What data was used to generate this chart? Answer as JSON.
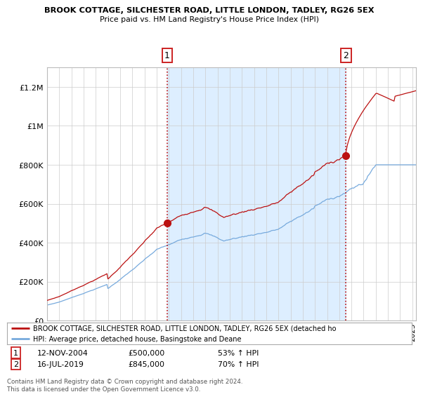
{
  "title1": "BROOK COTTAGE, SILCHESTER ROAD, LITTLE LONDON, TADLEY, RG26 5EX",
  "title2": "Price paid vs. HM Land Registry's House Price Index (HPI)",
  "legend_label1": "BROOK COTTAGE, SILCHESTER ROAD, LITTLE LONDON, TADLEY, RG26 5EX (detached ho",
  "legend_label2": "HPI: Average price, detached house, Basingstoke and Deane",
  "annotation1_label": "1",
  "annotation1_date": "12-NOV-2004",
  "annotation1_price": "£500,000",
  "annotation1_hpi": "53% ↑ HPI",
  "annotation2_label": "2",
  "annotation2_date": "16-JUL-2019",
  "annotation2_price": "£845,000",
  "annotation2_hpi": "70% ↑ HPI",
  "footer": "Contains HM Land Registry data © Crown copyright and database right 2024.\nThis data is licensed under the Open Government Licence v3.0.",
  "line1_color": "#bb1111",
  "line2_color": "#77aadd",
  "shade_color": "#ddeeff",
  "background_color": "#ffffff",
  "grid_color": "#cccccc",
  "sale1_x": 2004.87,
  "sale1_y": 500000,
  "sale2_x": 2019.54,
  "sale2_y": 845000,
  "ylim": [
    0,
    1300000
  ],
  "xlim_start": 1995.0,
  "xlim_end": 2025.3
}
